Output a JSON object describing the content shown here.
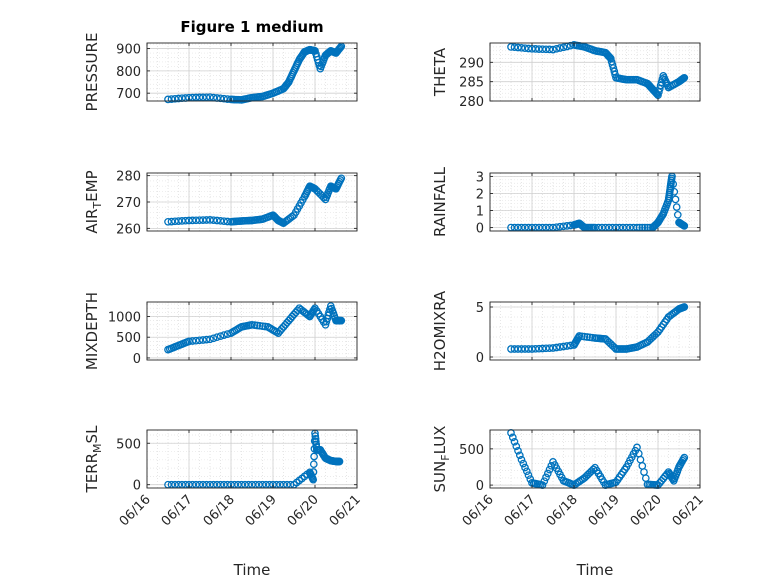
{
  "chart_data": [
    {
      "id": "pressure",
      "type": "scatter",
      "title": "Figure 1 medium",
      "ylabel": "PRESSURE",
      "ylabel_sub": "",
      "ylabel_tail": "",
      "xlabel": "",
      "xlim": [
        "06/16",
        "06/21"
      ],
      "ylim": [
        665,
        925
      ],
      "yticks": [
        700,
        800,
        900
      ],
      "ytick_labels": [
        "700",
        "800",
        "900"
      ],
      "x": [
        "06/16 12:00",
        "06/17 00:00",
        "06/17 12:00",
        "06/18 00:00",
        "06/18 06:00",
        "06/18 12:00",
        "06/18 18:00",
        "06/19 00:00",
        "06/19 06:00",
        "06/19 09:00",
        "06/19 12:00",
        "06/19 15:00",
        "06/19 18:00",
        "06/19 21:00",
        "06/20 00:00",
        "06/20 03:00",
        "06/20 06:00",
        "06/20 09:00",
        "06/20 12:00",
        "06/20 15:00"
      ],
      "y": [
        672,
        680,
        682,
        672,
        670,
        680,
        685,
        700,
        720,
        750,
        800,
        850,
        885,
        895,
        890,
        810,
        870,
        890,
        880,
        910
      ]
    },
    {
      "id": "theta",
      "type": "scatter",
      "title": "",
      "ylabel": "THETA",
      "ylabel_sub": "",
      "ylabel_tail": "",
      "xlabel": "",
      "xlim": [
        "06/16",
        "06/21"
      ],
      "ylim": [
        280,
        295
      ],
      "yticks": [
        280,
        285,
        290
      ],
      "ytick_labels": [
        "280",
        "285",
        "290"
      ],
      "x": [
        "06/16 12:00",
        "06/17 00:00",
        "06/17 12:00",
        "06/18 00:00",
        "06/18 06:00",
        "06/18 12:00",
        "06/18 18:00",
        "06/18 21:00",
        "06/19 00:00",
        "06/19 06:00",
        "06/19 12:00",
        "06/19 18:00",
        "06/19 21:00",
        "06/20 00:00",
        "06/20 03:00",
        "06/20 06:00",
        "06/20 12:00",
        "06/20 15:00"
      ],
      "y": [
        294,
        293.5,
        293.3,
        294.5,
        294,
        293,
        292.5,
        291,
        286,
        285.5,
        285.5,
        284.5,
        283,
        281.5,
        286.5,
        283.5,
        285,
        286
      ]
    },
    {
      "id": "air_temp",
      "type": "scatter",
      "title": "",
      "ylabel": "AIR",
      "ylabel_sub": "T",
      "ylabel_tail": "EMP",
      "xlabel": "",
      "xlim": [
        "06/16",
        "06/21"
      ],
      "ylim": [
        259,
        281
      ],
      "yticks": [
        260,
        270,
        280
      ],
      "ytick_labels": [
        "260",
        "270",
        "280"
      ],
      "x": [
        "06/16 12:00",
        "06/17 00:00",
        "06/17 12:00",
        "06/18 00:00",
        "06/18 06:00",
        "06/18 12:00",
        "06/18 18:00",
        "06/19 00:00",
        "06/19 03:00",
        "06/19 06:00",
        "06/19 12:00",
        "06/19 18:00",
        "06/19 21:00",
        "06/20 00:00",
        "06/20 06:00",
        "06/20 09:00",
        "06/20 12:00",
        "06/20 15:00"
      ],
      "y": [
        262.5,
        263,
        263.2,
        262.5,
        262.8,
        263,
        263.5,
        265,
        263,
        262,
        265,
        272,
        276,
        275,
        271,
        276,
        275,
        279
      ]
    },
    {
      "id": "rainfall",
      "type": "scatter",
      "title": "",
      "ylabel": "RAINFALL",
      "ylabel_sub": "",
      "ylabel_tail": "",
      "xlabel": "",
      "xlim": [
        "06/16",
        "06/21"
      ],
      "ylim": [
        -0.2,
        3.2
      ],
      "yticks": [
        0,
        1,
        2,
        3
      ],
      "ytick_labels": [
        "0",
        "1",
        "2",
        "3"
      ],
      "x": [
        "06/16 12:00",
        "06/17 00:00",
        "06/17 12:00",
        "06/18 00:00",
        "06/18 03:00",
        "06/18 06:00",
        "06/18 12:00",
        "06/19 00:00",
        "06/19 12:00",
        "06/19 21:00",
        "06/20 00:00",
        "06/20 03:00",
        "06/20 06:00",
        "06/20 07:00",
        "06/20 08:00",
        "06/20 12:00",
        "06/20 15:00"
      ],
      "y": [
        0,
        0,
        0,
        0.15,
        0.25,
        0,
        0,
        0,
        0,
        0,
        0.3,
        0.8,
        1.6,
        2.3,
        3.0,
        0.3,
        0.1
      ]
    },
    {
      "id": "mixdepth",
      "type": "scatter",
      "title": "",
      "ylabel": "MIXDEPTH",
      "ylabel_sub": "",
      "ylabel_tail": "",
      "xlabel": "",
      "xlim": [
        "06/16",
        "06/21"
      ],
      "ylim": [
        -50,
        1350
      ],
      "yticks": [
        0,
        500,
        1000
      ],
      "ytick_labels": [
        "0",
        "500",
        "1000"
      ],
      "x": [
        "06/16 12:00",
        "06/16 18:00",
        "06/17 00:00",
        "06/17 12:00",
        "06/18 00:00",
        "06/18 06:00",
        "06/18 12:00",
        "06/18 21:00",
        "06/19 03:00",
        "06/19 09:00",
        "06/19 15:00",
        "06/19 21:00",
        "06/20 00:00",
        "06/20 06:00",
        "06/20 09:00",
        "06/20 12:00",
        "06/20 15:00"
      ],
      "y": [
        200,
        300,
        400,
        450,
        600,
        750,
        800,
        750,
        600,
        900,
        1200,
        1000,
        1200,
        800,
        1250,
        900,
        900
      ]
    },
    {
      "id": "h2omixra",
      "type": "scatter",
      "title": "",
      "ylabel": "H2OMIXRA",
      "ylabel_sub": "",
      "ylabel_tail": "",
      "xlabel": "",
      "xlim": [
        "06/16",
        "06/21"
      ],
      "ylim": [
        -0.3,
        5.5
      ],
      "yticks": [
        0,
        5
      ],
      "ytick_labels": [
        "0",
        "5"
      ],
      "x": [
        "06/16 12:00",
        "06/17 00:00",
        "06/17 12:00",
        "06/18 00:00",
        "06/18 03:00",
        "06/18 12:00",
        "06/18 18:00",
        "06/19 00:00",
        "06/19 06:00",
        "06/19 12:00",
        "06/19 18:00",
        "06/20 00:00",
        "06/20 06:00",
        "06/20 12:00",
        "06/20 15:00"
      ],
      "y": [
        0.8,
        0.8,
        0.9,
        1.2,
        2.1,
        1.9,
        1.8,
        0.8,
        0.8,
        1.0,
        1.5,
        2.5,
        4.0,
        4.8,
        5.0
      ]
    },
    {
      "id": "terr_msl",
      "type": "scatter",
      "title": "",
      "ylabel": "TERR",
      "ylabel_sub": "M",
      "ylabel_tail": "SL",
      "xlabel": "Time",
      "xlim": [
        "06/16",
        "06/21"
      ],
      "ylim": [
        -40,
        660
      ],
      "yticks": [
        0,
        500
      ],
      "ytick_labels": [
        "0",
        "500"
      ],
      "x": [
        "06/16 12:00",
        "06/17 00:00",
        "06/17 12:00",
        "06/18 00:00",
        "06/18 12:00",
        "06/19 00:00",
        "06/19 12:00",
        "06/19 21:00",
        "06/19 23:00",
        "06/20 00:00",
        "06/20 01:00",
        "06/20 03:00",
        "06/20 06:00",
        "06/20 09:00",
        "06/20 12:00",
        "06/20 14:00"
      ],
      "y": [
        0,
        0,
        0,
        0,
        0,
        0,
        0,
        150,
        60,
        620,
        420,
        420,
        320,
        290,
        280,
        280
      ]
    },
    {
      "id": "sun_flux",
      "type": "scatter",
      "title": "",
      "ylabel": "SUN",
      "ylabel_sub": "F",
      "ylabel_tail": "LUX",
      "xlabel": "Time",
      "xlim": [
        "06/16",
        "06/21"
      ],
      "ylim": [
        -40,
        760
      ],
      "yticks": [
        0,
        500
      ],
      "ytick_labels": [
        "0",
        "500"
      ],
      "x": [
        "06/16 12:00",
        "06/16 18:00",
        "06/17 00:00",
        "06/17 06:00",
        "06/17 12:00",
        "06/17 18:00",
        "06/18 00:00",
        "06/18 06:00",
        "06/18 12:00",
        "06/18 18:00",
        "06/19 00:00",
        "06/19 06:00",
        "06/19 12:00",
        "06/19 18:00",
        "06/20 00:00",
        "06/20 06:00",
        "06/20 09:00",
        "06/20 12:00",
        "06/20 15:00"
      ],
      "y": [
        720,
        350,
        30,
        0,
        320,
        60,
        0,
        100,
        240,
        0,
        40,
        250,
        520,
        10,
        0,
        180,
        60,
        250,
        380
      ]
    }
  ],
  "x_tick_labels": [
    "06/16",
    "06/17",
    "06/18",
    "06/19",
    "06/20",
    "06/21"
  ],
  "marker_color": "#0072BD",
  "grid": "on (minor dotted)"
}
